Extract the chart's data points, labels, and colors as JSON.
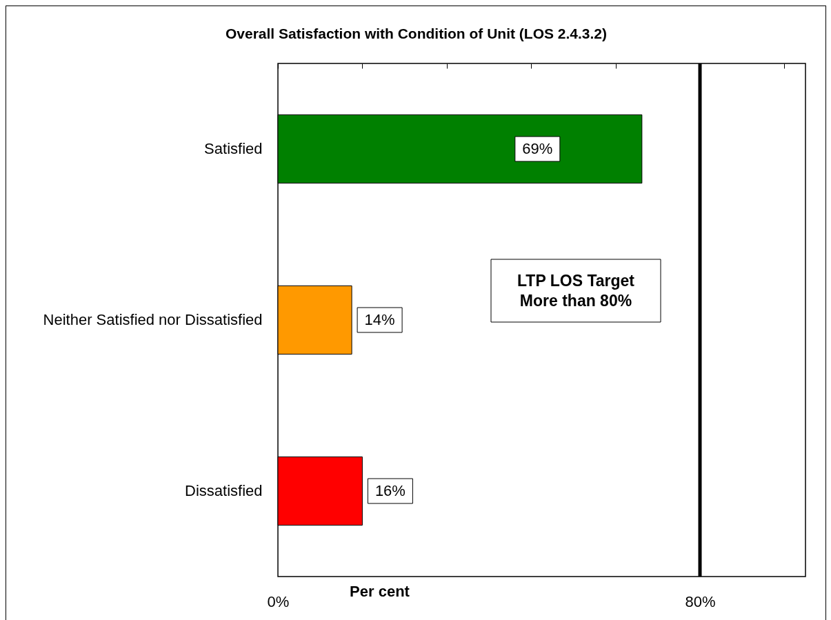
{
  "chart_data": {
    "type": "bar",
    "orientation": "horizontal",
    "title": "Overall Satisfaction with Condition of Unit (LOS 2.4.3.2)",
    "xlabel": "Per cent",
    "categories": [
      "Satisfied",
      "Neither Satisfied nor Dissatisfied",
      "Dissatisfied"
    ],
    "values": [
      69,
      14,
      16
    ],
    "colors": [
      "#008000",
      "#ff9900",
      "#ff0000"
    ],
    "value_labels": [
      "69%",
      "14%",
      "16%"
    ],
    "xlim": [
      0,
      100
    ],
    "xticks": [
      {
        "value": 0,
        "label": "0%"
      },
      {
        "value": 16,
        "label": null
      },
      {
        "value": 32,
        "label": null
      },
      {
        "value": 48,
        "label": null
      },
      {
        "value": 64,
        "label": null
      },
      {
        "value": 80,
        "label": "80%"
      },
      {
        "value": 96,
        "label": null
      }
    ],
    "ref_lines": [
      {
        "axis": "x",
        "value": 80,
        "label": "LTP LOS Target\nMore than 80%",
        "color": "#000000",
        "line_style": "solid"
      }
    ]
  }
}
